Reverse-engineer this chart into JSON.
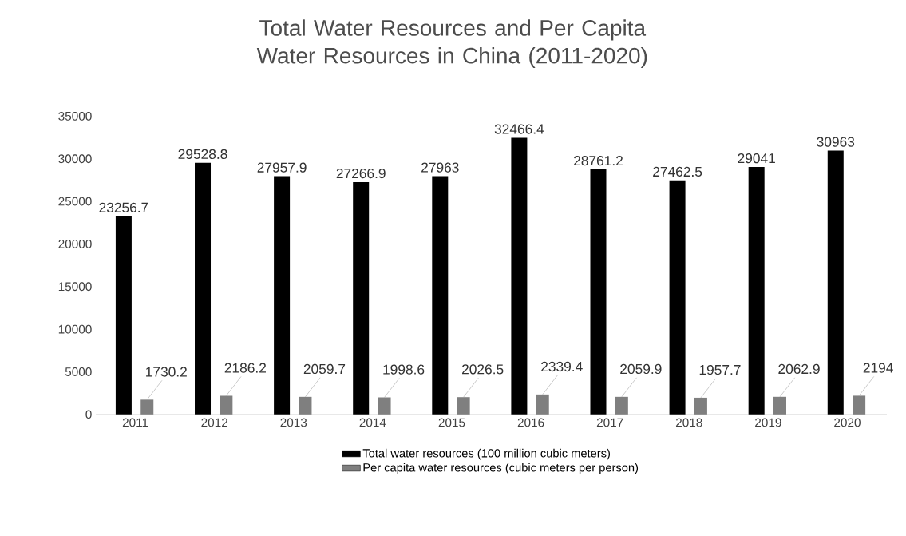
{
  "chart_data": {
    "type": "bar",
    "title": "Total Water Resources and Per Capita Water Resources in China (2011-2020)",
    "categories": [
      "2011",
      "2012",
      "2013",
      "2014",
      "2015",
      "2016",
      "2017",
      "2018",
      "2019",
      "2020"
    ],
    "series": [
      {
        "name": "Total water resources (100 million cubic meters)",
        "color": "#000000",
        "values": [
          23256.7,
          29528.8,
          27957.9,
          27266.9,
          27963,
          32466.4,
          28761.2,
          27462.5,
          29041,
          30963
        ]
      },
      {
        "name": "Per capita water resources (cubic meters per person)",
        "color": "#7f7f7f",
        "values": [
          1730.2,
          2186.2,
          2059.7,
          1998.6,
          2026.5,
          2339.4,
          2059.9,
          1957.7,
          2062.9,
          2194
        ]
      }
    ],
    "ylim": [
      0,
      35000
    ],
    "yticks": [
      0,
      5000,
      10000,
      15000,
      20000,
      25000,
      30000,
      35000
    ],
    "data_labels": true,
    "legend": "bottom"
  }
}
